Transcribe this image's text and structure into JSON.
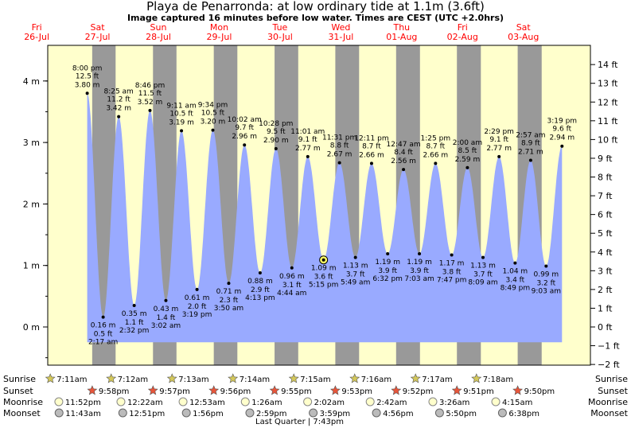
{
  "title": "Playa de Penarronda: at low  ordinary tide at 1.1m (3.6ft)",
  "subtitle": "Image captured 16 minutes before low water. Times are CEST (UTC +2.0hrs)",
  "colors": {
    "day": "#ffffcc",
    "night": "#999999",
    "tide_fill": "#99aaff",
    "day_label": "#ff0000",
    "marker": "#ffff66",
    "sunrise_star": "#d4c85a",
    "sunset_star": "#e8553a",
    "moonrise": "#ffffcc",
    "moonset": "#bbbbbb"
  },
  "chart_data": {
    "type": "area",
    "ylabel_left": "m",
    "ylabel_right": "ft",
    "ylim_m": [
      -0.55,
      4.6
    ],
    "yticks_m": [
      "0 m",
      "1 m",
      "2 m",
      "3 m",
      "4 m"
    ],
    "yticks_ft": [
      "−2 ft",
      "−1 ft",
      "0 ft",
      "1 ft",
      "2 ft",
      "3 ft",
      "4 ft",
      "5 ft",
      "6 ft",
      "7 ft",
      "8 ft",
      "9 ft",
      "10 ft",
      "11 ft",
      "12 ft",
      "13 ft",
      "14 ft"
    ],
    "days": [
      {
        "weekday": "Fri",
        "date": "26-Jul"
      },
      {
        "weekday": "Sat",
        "date": "27-Jul"
      },
      {
        "weekday": "Sun",
        "date": "28-Jul"
      },
      {
        "weekday": "Mon",
        "date": "29-Jul"
      },
      {
        "weekday": "Tue",
        "date": "30-Jul"
      },
      {
        "weekday": "Wed",
        "date": "31-Jul"
      },
      {
        "weekday": "Thu",
        "date": "01-Aug"
      },
      {
        "weekday": "Fri",
        "date": "02-Aug"
      },
      {
        "weekday": "Sat",
        "date": "03-Aug"
      }
    ],
    "tides": [
      {
        "type": "high",
        "day": 0,
        "hour": 20.0,
        "m": 3.8,
        "ft": "12.5 ft",
        "time": "8:00 pm",
        "height": "3.80 m"
      },
      {
        "type": "low",
        "day": 1,
        "hour": 2.283,
        "m": 0.16,
        "ft": "0.5 ft",
        "time": "2:17 am",
        "height": "0.16 m"
      },
      {
        "type": "high",
        "day": 1,
        "hour": 8.417,
        "m": 3.42,
        "ft": "11.2 ft",
        "time": "8:25 am",
        "height": "3.42 m"
      },
      {
        "type": "low",
        "day": 1,
        "hour": 14.533,
        "m": 0.35,
        "ft": "1.1 ft",
        "time": "2:32 pm",
        "height": "0.35 m"
      },
      {
        "type": "high",
        "day": 1,
        "hour": 20.767,
        "m": 3.52,
        "ft": "11.5 ft",
        "time": "8:46 pm",
        "height": "3.52 m"
      },
      {
        "type": "low",
        "day": 2,
        "hour": 3.033,
        "m": 0.43,
        "ft": "1.4 ft",
        "time": "3:02 am",
        "height": "0.43 m"
      },
      {
        "type": "high",
        "day": 2,
        "hour": 9.183,
        "m": 3.19,
        "ft": "10.5 ft",
        "time": "9:11 am",
        "height": "3.19 m"
      },
      {
        "type": "low",
        "day": 2,
        "hour": 15.317,
        "m": 0.61,
        "ft": "2.0 ft",
        "time": "3:19 pm",
        "height": "0.61 m"
      },
      {
        "type": "high",
        "day": 2,
        "hour": 21.567,
        "m": 3.2,
        "ft": "10.5 ft",
        "time": "9:34 pm",
        "height": "3.20 m"
      },
      {
        "type": "low",
        "day": 3,
        "hour": 3.833,
        "m": 0.71,
        "ft": "2.3 ft",
        "time": "3:50 am",
        "height": "0.71 m"
      },
      {
        "type": "high",
        "day": 3,
        "hour": 10.033,
        "m": 2.96,
        "ft": "9.7 ft",
        "time": "10:02 am",
        "height": "2.96 m"
      },
      {
        "type": "low",
        "day": 3,
        "hour": 16.217,
        "m": 0.88,
        "ft": "2.9 ft",
        "time": "4:13 pm",
        "height": "0.88 m"
      },
      {
        "type": "high",
        "day": 3,
        "hour": 22.467,
        "m": 2.9,
        "ft": "9.5 ft",
        "time": "10:28 pm",
        "height": "2.90 m"
      },
      {
        "type": "low",
        "day": 4,
        "hour": 4.733,
        "m": 0.96,
        "ft": "3.1 ft",
        "time": "4:44 am",
        "height": "0.96 m"
      },
      {
        "type": "high",
        "day": 4,
        "hour": 11.017,
        "m": 2.77,
        "ft": "9.1 ft",
        "time": "11:01 am",
        "height": "2.77 m"
      },
      {
        "type": "low",
        "day": 4,
        "hour": 17.25,
        "m": 1.09,
        "ft": "3.6 ft",
        "time": "5:15 pm",
        "height": "1.09 m",
        "current": true
      },
      {
        "type": "high",
        "day": 4,
        "hour": 23.517,
        "m": 2.67,
        "ft": "8.8 ft",
        "time": "11:31 pm",
        "height": "2.67 m"
      },
      {
        "type": "low",
        "day": 5,
        "hour": 5.817,
        "m": 1.13,
        "ft": "3.7 ft",
        "time": "5:49 am",
        "height": "1.13 m"
      },
      {
        "type": "high",
        "day": 5,
        "hour": 12.183,
        "m": 2.66,
        "ft": "8.7 ft",
        "time": "12:11 pm",
        "height": "2.66 m"
      },
      {
        "type": "low",
        "day": 5,
        "hour": 18.533,
        "m": 1.19,
        "ft": "3.9 ft",
        "time": "6:32 pm",
        "height": "1.19 m"
      },
      {
        "type": "high",
        "day": 6,
        "hour": 0.783,
        "m": 2.56,
        "ft": "8.4 ft",
        "time": "12:47 am",
        "height": "2.56 m"
      },
      {
        "type": "low",
        "day": 6,
        "hour": 7.05,
        "m": 1.19,
        "ft": "3.9 ft",
        "time": "7:03 am",
        "height": "1.19 m"
      },
      {
        "type": "high",
        "day": 6,
        "hour": 13.417,
        "m": 2.66,
        "ft": "8.7 ft",
        "time": "1:25 pm",
        "height": "2.66 m"
      },
      {
        "type": "low",
        "day": 6,
        "hour": 19.783,
        "m": 1.17,
        "ft": "3.8 ft",
        "time": "7:47 pm",
        "height": "1.17 m"
      },
      {
        "type": "high",
        "day": 7,
        "hour": 2.0,
        "m": 2.59,
        "ft": "8.5 ft",
        "time": "2:00 am",
        "height": "2.59 m"
      },
      {
        "type": "low",
        "day": 7,
        "hour": 8.15,
        "m": 1.13,
        "ft": "3.7 ft",
        "time": "8:09 am",
        "height": "1.13 m"
      },
      {
        "type": "high",
        "day": 7,
        "hour": 14.483,
        "m": 2.77,
        "ft": "9.1 ft",
        "time": "2:29 pm",
        "height": "2.77 m"
      },
      {
        "type": "low",
        "day": 7,
        "hour": 20.817,
        "m": 1.04,
        "ft": "3.4 ft",
        "time": "8:49 pm",
        "height": "1.04 m"
      },
      {
        "type": "high",
        "day": 8,
        "hour": 2.95,
        "m": 2.71,
        "ft": "8.9 ft",
        "time": "2:57 am",
        "height": "2.71 m"
      },
      {
        "type": "low",
        "day": 8,
        "hour": 9.05,
        "m": 0.99,
        "ft": "3.2 ft",
        "time": "9:03 am",
        "height": "0.99 m"
      },
      {
        "type": "high",
        "day": 8,
        "hour": 15.317,
        "m": 2.94,
        "ft": "9.6 ft",
        "time": "3:19 pm",
        "height": "2.94 m"
      }
    ],
    "sun": [
      {
        "rise": "7:11am",
        "set": "9:58pm",
        "rise_h": 7.183,
        "set_h": 21.967
      },
      {
        "rise": "7:12am",
        "set": "9:57pm",
        "rise_h": 7.2,
        "set_h": 21.95
      },
      {
        "rise": "7:13am",
        "set": "9:56pm",
        "rise_h": 7.217,
        "set_h": 21.933
      },
      {
        "rise": "7:14am",
        "set": "9:55pm",
        "rise_h": 7.233,
        "set_h": 21.917
      },
      {
        "rise": "7:15am",
        "set": "9:53pm",
        "rise_h": 7.25,
        "set_h": 21.883
      },
      {
        "rise": "7:16am",
        "set": "9:52pm",
        "rise_h": 7.267,
        "set_h": 21.867
      },
      {
        "rise": "7:17am",
        "set": "9:51pm",
        "rise_h": 7.283,
        "set_h": 21.85
      },
      {
        "rise": "7:18am",
        "set": "9:50pm",
        "rise_h": 7.3,
        "set_h": 21.833
      }
    ],
    "moonrise": [
      {
        "day": 0,
        "time": "11:52pm",
        "hour": 23.867
      },
      {
        "day": 1,
        "time": "12:22am",
        "hour": 24.367
      },
      {
        "day": 2,
        "time": "12:53am",
        "hour": 24.883
      },
      {
        "day": 3,
        "time": "1:26am",
        "hour": 25.433
      },
      {
        "day": 4,
        "time": "2:02am",
        "hour": 26.033
      },
      {
        "day": 5,
        "time": "2:42am",
        "hour": 26.7
      },
      {
        "day": 6,
        "time": "3:26am",
        "hour": 27.433
      },
      {
        "day": 7,
        "time": "4:15am",
        "hour": 28.25
      }
    ],
    "moonset": [
      {
        "day": 0,
        "time": "11:43am",
        "hour": 11.717
      },
      {
        "day": 1,
        "time": "12:51pm",
        "hour": 12.85
      },
      {
        "day": 2,
        "time": "1:56pm",
        "hour": 13.933
      },
      {
        "day": 3,
        "time": "2:59pm",
        "hour": 14.983
      },
      {
        "day": 4,
        "time": "3:59pm",
        "hour": 15.983
      },
      {
        "day": 5,
        "time": "4:56pm",
        "hour": 16.933
      },
      {
        "day": 6,
        "time": "5:50pm",
        "hour": 17.833
      },
      {
        "day": 7,
        "time": "6:38pm",
        "hour": 18.633
      }
    ],
    "row_labels": {
      "sunrise": "Sunrise",
      "sunset": "Sunset",
      "moonrise": "Moonrise",
      "moonset": "Moonset"
    },
    "moon_phase": "Last Quarter | 7:43pm"
  }
}
